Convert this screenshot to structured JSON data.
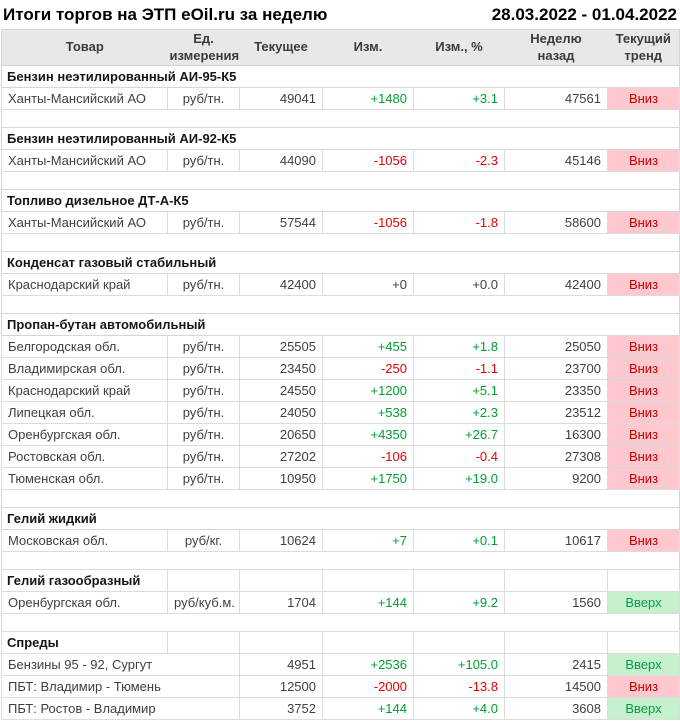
{
  "title": "Итоги торгов на ЭТП eOil.ru за неделю",
  "period": "28.03.2022 - 01.04.2022",
  "columns": [
    "Товар",
    "Ед.\nизмерения",
    "Текущее",
    "Изм.",
    "Изм., %",
    "Неделю\nназад",
    "Текущий\nтренд"
  ],
  "colors": {
    "header_bg": "#e8e8e8",
    "value_up_text": "#00a030",
    "value_down_text": "#e60000",
    "value_flat_text": "#404040",
    "trend_up_bg": "#c6efce",
    "trend_up_text": "#00a046",
    "trend_down_bg": "#ffc7ce",
    "trend_down_text": "#c00000"
  },
  "trend_labels": {
    "up": "Вверх",
    "down": "Вниз"
  },
  "sections": [
    {
      "name": "Бензин неэтилированный АИ-95-К5",
      "rows": [
        {
          "product": "Ханты-Мансийский АО",
          "unit": "руб/тн.",
          "current": "49041",
          "change": "+1480",
          "change_dir": "up",
          "change_pct": "+3.1",
          "pct_dir": "up",
          "week_ago": "47561",
          "trend": "Вниз",
          "trend_dir": "down"
        }
      ]
    },
    {
      "name": "Бензин неэтилированный АИ-92-К5",
      "rows": [
        {
          "product": "Ханты-Мансийский АО",
          "unit": "руб/тн.",
          "current": "44090",
          "change": "-1056",
          "change_dir": "down",
          "change_pct": "-2.3",
          "pct_dir": "down",
          "week_ago": "45146",
          "trend": "Вниз",
          "trend_dir": "down"
        }
      ]
    },
    {
      "name": "Топливо дизельное ДТ-А-К5",
      "rows": [
        {
          "product": "Ханты-Мансийский АО",
          "unit": "руб/тн.",
          "current": "57544",
          "change": "-1056",
          "change_dir": "down",
          "change_pct": "-1.8",
          "pct_dir": "down",
          "week_ago": "58600",
          "trend": "Вниз",
          "trend_dir": "down"
        }
      ]
    },
    {
      "name": "Конденсат газовый стабильный",
      "rows": [
        {
          "product": "Краснодарский край",
          "unit": "руб/тн.",
          "current": "42400",
          "change": "+0",
          "change_dir": "flat",
          "change_pct": "+0.0",
          "pct_dir": "flat",
          "week_ago": "42400",
          "trend": "Вниз",
          "trend_dir": "down"
        }
      ]
    },
    {
      "name": "Пропан-бутан автомобильный",
      "rows": [
        {
          "product": "Белгородская обл.",
          "unit": "руб/тн.",
          "current": "25505",
          "change": "+455",
          "change_dir": "up",
          "change_pct": "+1.8",
          "pct_dir": "up",
          "week_ago": "25050",
          "trend": "Вниз",
          "trend_dir": "down"
        },
        {
          "product": "Владимирская обл.",
          "unit": "руб/тн.",
          "current": "23450",
          "change": "-250",
          "change_dir": "down",
          "change_pct": "-1.1",
          "pct_dir": "down",
          "week_ago": "23700",
          "trend": "Вниз",
          "trend_dir": "down"
        },
        {
          "product": "Краснодарский край",
          "unit": "руб/тн.",
          "current": "24550",
          "change": "+1200",
          "change_dir": "up",
          "change_pct": "+5.1",
          "pct_dir": "up",
          "week_ago": "23350",
          "trend": "Вниз",
          "trend_dir": "down"
        },
        {
          "product": "Липецкая обл.",
          "unit": "руб/тн.",
          "current": "24050",
          "change": "+538",
          "change_dir": "up",
          "change_pct": "+2.3",
          "pct_dir": "up",
          "week_ago": "23512",
          "trend": "Вниз",
          "trend_dir": "down"
        },
        {
          "product": "Оренбургская обл.",
          "unit": "руб/тн.",
          "current": "20650",
          "change": "+4350",
          "change_dir": "up",
          "change_pct": "+26.7",
          "pct_dir": "up",
          "week_ago": "16300",
          "trend": "Вниз",
          "trend_dir": "down"
        },
        {
          "product": "Ростовская обл.",
          "unit": "руб/тн.",
          "current": "27202",
          "change": "-106",
          "change_dir": "down",
          "change_pct": "-0.4",
          "pct_dir": "down",
          "week_ago": "27308",
          "trend": "Вниз",
          "trend_dir": "down"
        },
        {
          "product": "Тюменская обл.",
          "unit": "руб/тн.",
          "current": "10950",
          "change": "+1750",
          "change_dir": "up",
          "change_pct": "+19.0",
          "pct_dir": "up",
          "week_ago": "9200",
          "trend": "Вниз",
          "trend_dir": "down"
        }
      ]
    },
    {
      "name": "Гелий жидкий",
      "rows": [
        {
          "product": "Московская обл.",
          "unit": "руб/кг.",
          "current": "10624",
          "change": "+7",
          "change_dir": "up",
          "change_pct": "+0.1",
          "pct_dir": "up",
          "week_ago": "10617",
          "trend": "Вниз",
          "trend_dir": "down"
        }
      ]
    },
    {
      "name": "Гелий газообразный",
      "grid_header": true,
      "rows": [
        {
          "product": "Оренбургская обл.",
          "unit": "руб/куб.м.",
          "current": "1704",
          "change": "+144",
          "change_dir": "up",
          "change_pct": "+9.2",
          "pct_dir": "up",
          "week_ago": "1560",
          "trend": "Вверх",
          "trend_dir": "up"
        }
      ]
    },
    {
      "name": "Спреды",
      "grid_header": true,
      "merge_product_unit": true,
      "rows": [
        {
          "product": "Бензины 95 - 92, Сургут",
          "unit": "",
          "current": "4951",
          "change": "+2536",
          "change_dir": "up",
          "change_pct": "+105.0",
          "pct_dir": "up",
          "week_ago": "2415",
          "trend": "Вверх",
          "trend_dir": "up"
        },
        {
          "product": "ПБТ: Владимир - Тюмень",
          "unit": "",
          "current": "12500",
          "change": "-2000",
          "change_dir": "down",
          "change_pct": "-13.8",
          "pct_dir": "down",
          "week_ago": "14500",
          "trend": "Вниз",
          "trend_dir": "down"
        },
        {
          "product": "ПБТ: Ростов - Владимир",
          "unit": "",
          "current": "3752",
          "change": "+144",
          "change_dir": "up",
          "change_pct": "+4.0",
          "pct_dir": "up",
          "week_ago": "3608",
          "trend": "Вверх",
          "trend_dir": "up"
        }
      ]
    }
  ]
}
